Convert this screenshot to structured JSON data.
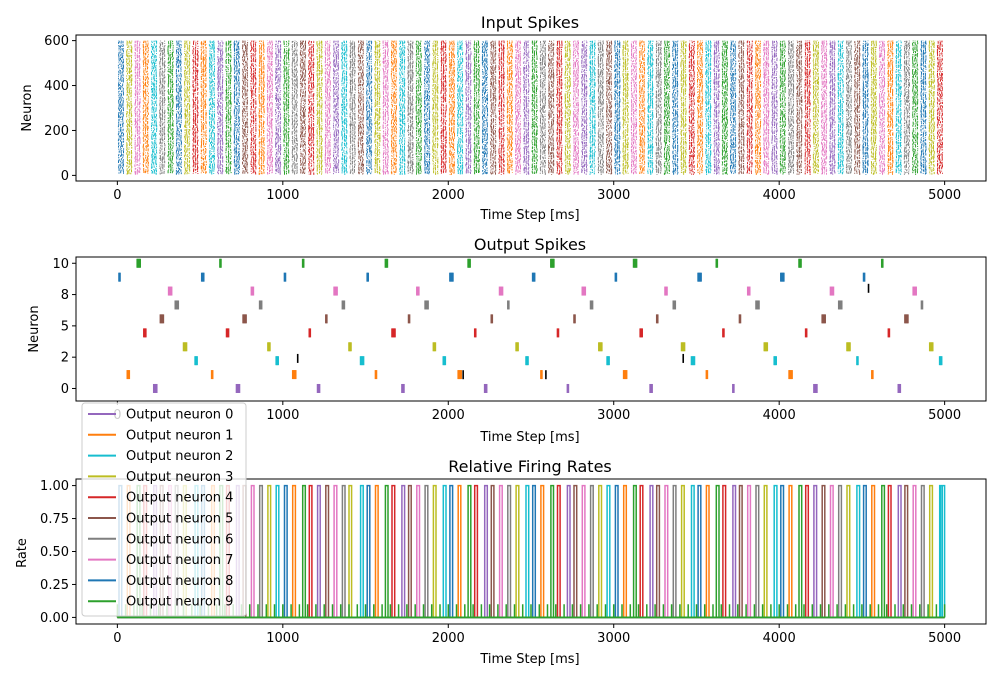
{
  "colors": {
    "tab10": [
      "#1f77b4",
      "#ff7f0e",
      "#2ca02c",
      "#d62728",
      "#9467bd",
      "#8c564b",
      "#e377c2",
      "#7f7f7f",
      "#bcbd22",
      "#17becf"
    ],
    "output_neuron_colors": [
      "#9467bd",
      "#ff7f0e",
      "#17becf",
      "#bcbd22",
      "#d62728",
      "#8c564b",
      "#7f7f7f",
      "#e377c2",
      "#1f77b4",
      "#2ca02c"
    ]
  },
  "chart_data": [
    {
      "type": "scatter",
      "title": "Input Spikes",
      "xlabel": "Time Step [ms]",
      "ylabel": "Neuron",
      "xlim": [
        -250,
        5250
      ],
      "ylim": [
        -25,
        625
      ],
      "xticks": [
        "0",
        "1000",
        "2000",
        "3000",
        "4000",
        "5000"
      ],
      "yticks": [
        "0",
        "200",
        "400",
        "600"
      ],
      "xtick_values": [
        0,
        1000,
        2000,
        3000,
        4000,
        5000
      ],
      "ytick_values": [
        0,
        200,
        400,
        600
      ],
      "neurons": [
        0,
        600
      ],
      "time_range": [
        0,
        5000
      ],
      "presentation_ms": 50,
      "grid": false
    },
    {
      "type": "scatter",
      "title": "Output Spikes",
      "xlabel": "Time Step [ms]",
      "ylabel": "Neuron",
      "xlim": [
        -250,
        5250
      ],
      "ylim": [
        -1,
        10.5
      ],
      "xticks": [
        "0",
        "1000",
        "2000",
        "3000",
        "4000",
        "5000"
      ],
      "yticks": [
        "0",
        "2",
        "5",
        "8",
        "10"
      ],
      "xtick_values": [
        0,
        1000,
        2000,
        3000,
        4000,
        5000
      ],
      "ytick_values": [
        0,
        2.5,
        5,
        7.5,
        10
      ],
      "neuron_rows": [
        0,
        1,
        2,
        3,
        4,
        5,
        6,
        7,
        8,
        9
      ],
      "row_y": [
        0,
        1.11,
        2.22,
        3.33,
        4.44,
        5.56,
        6.67,
        7.78,
        8.89,
        10
      ],
      "spike_times": [
        [
          220,
          720,
          1210,
          1720,
          2220,
          2720,
          3220,
          3720,
          4210,
          4720
        ],
        [
          60,
          570,
          1060,
          1560,
          2060,
          2560,
          3060,
          3560,
          4060,
          4560
        ],
        [
          470,
          960,
          1470,
          1970,
          2470,
          2960,
          3470,
          3970,
          4470,
          4970
        ],
        [
          400,
          910,
          1400,
          1910,
          2410,
          2910,
          3410,
          3910,
          4410,
          4910
        ],
        [
          160,
          660,
          1160,
          1660,
          2160,
          2660,
          3160,
          3660,
          4160,
          4660
        ],
        [
          260,
          760,
          1260,
          1760,
          2260,
          2760,
          3260,
          3760,
          4260,
          4760
        ],
        [
          350,
          860,
          1360,
          1860,
          2360,
          2860,
          3360,
          3860,
          4360,
          4860
        ],
        [
          310,
          810,
          1310,
          1810,
          2310,
          2810,
          3310,
          3810,
          4310,
          4810
        ],
        [
          10,
          510,
          1010,
          1510,
          2010,
          2510,
          3010,
          3510,
          4010,
          4510
        ],
        [
          120,
          620,
          1120,
          1620,
          2120,
          2620,
          3120,
          3620,
          4120,
          4620
        ]
      ],
      "black_spikes": [
        [
          1090,
          2.4
        ],
        [
          2090,
          1.1
        ],
        [
          2590,
          1.1
        ],
        [
          3420,
          2.4
        ],
        [
          4540,
          8.0
        ]
      ],
      "grid": false
    },
    {
      "type": "line",
      "title": "Relative Firing Rates",
      "xlabel": "Time Step [ms]",
      "ylabel": "Rate",
      "xlim": [
        -250,
        5250
      ],
      "ylim": [
        -0.05,
        1.05
      ],
      "xticks": [
        "0",
        "1000",
        "2000",
        "3000",
        "4000",
        "5000"
      ],
      "yticks": [
        "0.00",
        "0.25",
        "0.50",
        "0.75",
        "1.00"
      ],
      "xtick_values": [
        0,
        1000,
        2000,
        3000,
        4000,
        5000
      ],
      "ytick_values": [
        0,
        0.25,
        0.5,
        0.75,
        1.0
      ],
      "series": [
        {
          "name": "Output neuron 0",
          "color": "#9467bd"
        },
        {
          "name": "Output neuron 1",
          "color": "#ff7f0e"
        },
        {
          "name": "Output neuron 2",
          "color": "#17becf"
        },
        {
          "name": "Output neuron 3",
          "color": "#bcbd22"
        },
        {
          "name": "Output neuron 4",
          "color": "#d62728"
        },
        {
          "name": "Output neuron 5",
          "color": "#8c564b"
        },
        {
          "name": "Output neuron 6",
          "color": "#7f7f7f"
        },
        {
          "name": "Output neuron 7",
          "color": "#e377c2"
        },
        {
          "name": "Output neuron 8",
          "color": "#1f77b4"
        },
        {
          "name": "Output neuron 9",
          "color": "#2ca02c"
        }
      ],
      "pulse_high": 1.0,
      "pulse_low": 0.0,
      "green_spike_level": 0.1,
      "legend_placement": "upper-left",
      "grid": false
    }
  ]
}
